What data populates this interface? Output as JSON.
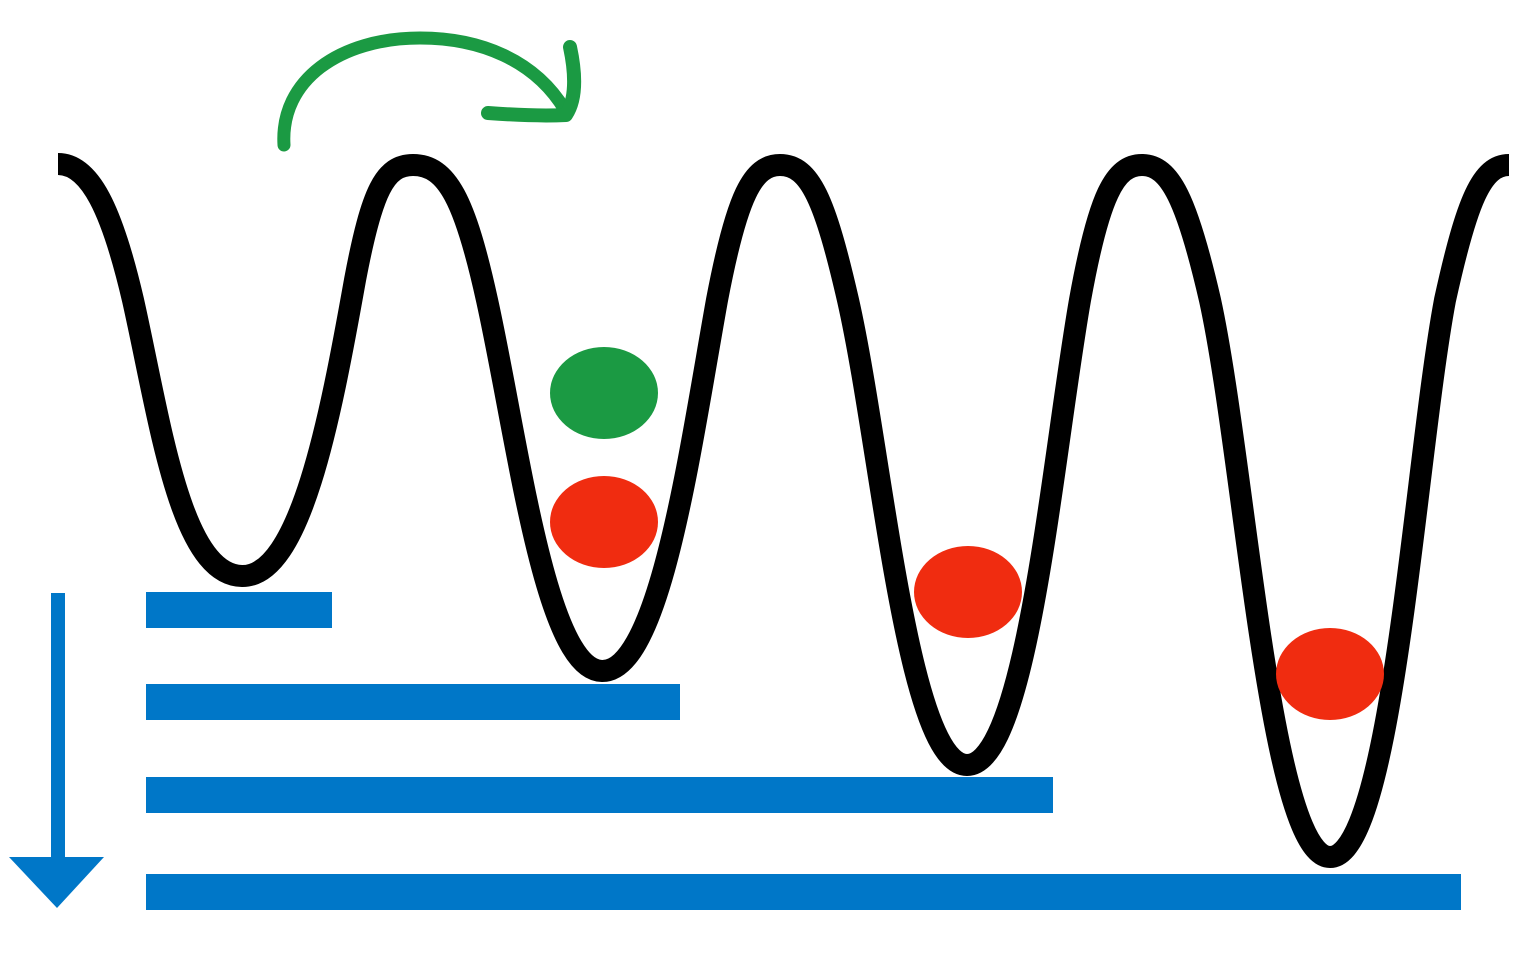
{
  "diagram": {
    "colors": {
      "background": "#ffffff",
      "potential_curve": "#000000",
      "energy_levels": "#0077c8",
      "energy_arrow": "#0077c8",
      "hop_arrow": "#1b9a43",
      "green_particle": "#1b9a43",
      "red_particle": "#f02c10"
    },
    "wells": [
      {
        "index": 1,
        "particles": []
      },
      {
        "index": 2,
        "particles": [
          "green",
          "red"
        ]
      },
      {
        "index": 3,
        "particles": [
          "red"
        ]
      },
      {
        "index": 4,
        "particles": [
          "red"
        ]
      }
    ],
    "energy_level_count": 4,
    "hop_arrow_direction": "right",
    "energy_arrow_direction": "down"
  }
}
